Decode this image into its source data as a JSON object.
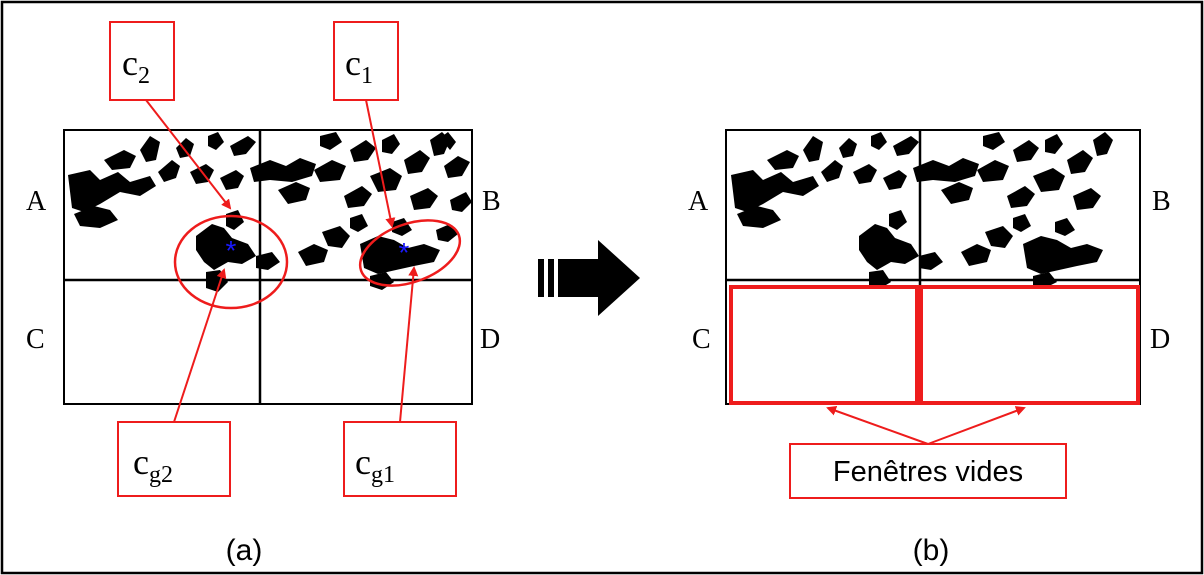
{
  "panel_a": {
    "corners": {
      "tl": "A",
      "tr": "B",
      "bl": "C",
      "br": "D"
    },
    "callouts": {
      "c2": {
        "base": "c",
        "sub": "2"
      },
      "c1": {
        "base": "c",
        "sub": "1"
      },
      "cg2": {
        "base": "c",
        "sub": "g2"
      },
      "cg1": {
        "base": "c",
        "sub": "g1"
      }
    },
    "caption": "(a)"
  },
  "panel_b": {
    "corners": {
      "tl": "A",
      "tr": "B",
      "bl": "C",
      "br": "D"
    },
    "empty_windows_label": "Fenêtres vides",
    "caption": "(b)"
  },
  "colors": {
    "annotation": "#ee1c1c",
    "centroid": "#1a1aff",
    "ink": "#000000",
    "frame": "#000000"
  }
}
